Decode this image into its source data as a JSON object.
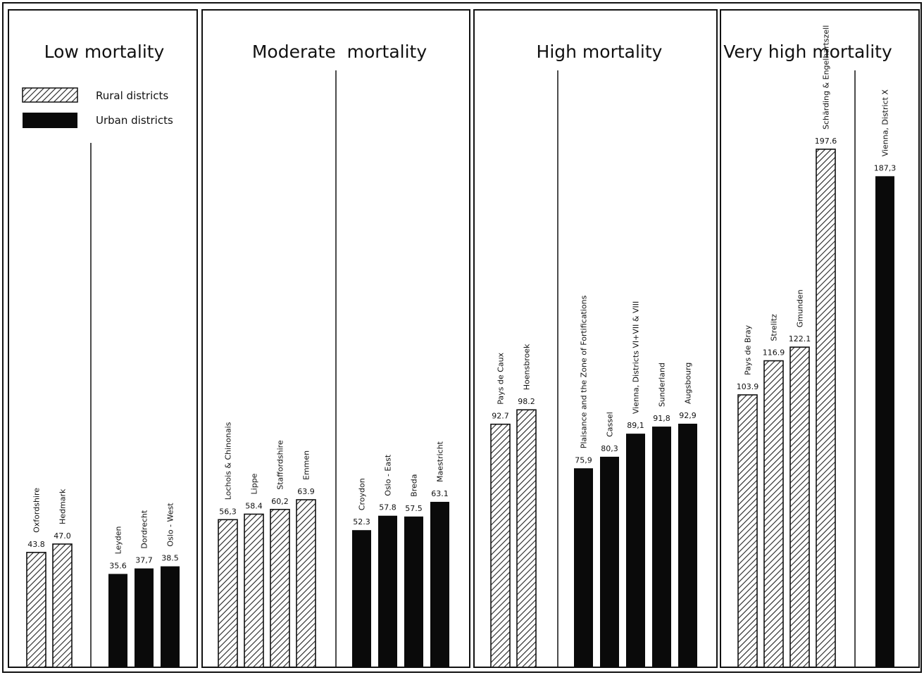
{
  "legend": {
    "rural": "Rural districts",
    "urban": "Urban districts"
  },
  "colors": {
    "urban": "#0a0a0a",
    "rural_hatch": "#222222",
    "background": "#ffffff"
  },
  "chart_data": [
    {
      "type": "bar",
      "title": "Low mortality",
      "ylim": [
        0,
        200
      ],
      "groups": [
        {
          "kind": "rural",
          "categories": [
            "Oxfordshire",
            "Hedmark"
          ],
          "values": [
            43.8,
            47.0
          ],
          "labels": [
            "43.8",
            "47.0"
          ]
        },
        {
          "kind": "urban",
          "categories": [
            "Leyden",
            "Dordrecht",
            "Oslo - West"
          ],
          "values": [
            35.6,
            37.7,
            38.5
          ],
          "labels": [
            "35.6",
            "37,7",
            "38.5"
          ]
        }
      ]
    },
    {
      "type": "bar",
      "title": "Moderate  mortality",
      "ylim": [
        0,
        200
      ],
      "groups": [
        {
          "kind": "rural",
          "categories": [
            "Lochois & Chinonais",
            "Lippe",
            "Staffordshire",
            "Emmen"
          ],
          "values": [
            56.3,
            58.4,
            60.2,
            63.9
          ],
          "labels": [
            "56,3",
            "58.4",
            "60,2",
            "63.9"
          ]
        },
        {
          "kind": "urban",
          "categories": [
            "Croydon",
            "Oslo - East",
            "Breda",
            "Maestricht"
          ],
          "values": [
            52.3,
            57.8,
            57.5,
            63.1
          ],
          "labels": [
            "52.3",
            "57.8",
            "57.5",
            "63.1"
          ]
        }
      ]
    },
    {
      "type": "bar",
      "title": "High mortality",
      "ylim": [
        0,
        200
      ],
      "groups": [
        {
          "kind": "rural",
          "categories": [
            "Pays de Caux",
            "Hoensbroek"
          ],
          "values": [
            92.7,
            98.2
          ],
          "labels": [
            "92.7",
            "98.2"
          ]
        },
        {
          "kind": "urban",
          "categories": [
            "Plaisance and the Zone of Fortifications",
            "Cassel",
            "Vienna, Districts VI+VII & VIII",
            "Sunderland",
            "Augsbourg"
          ],
          "values": [
            75.9,
            80.3,
            89.1,
            91.8,
            92.9
          ],
          "labels": [
            "75,9",
            "80,3",
            "89,1",
            "91,8",
            "92,9"
          ]
        }
      ]
    },
    {
      "type": "bar",
      "title": "Very high mortality",
      "ylim": [
        0,
        200
      ],
      "groups": [
        {
          "kind": "rural",
          "categories": [
            "Pays de Bray",
            "Strelitz",
            "Gmunden",
            "Schärding & Engelhartszell"
          ],
          "values": [
            103.9,
            116.9,
            122.1,
            197.6
          ],
          "labels": [
            "103.9",
            "116.9",
            "122.1",
            "197.6"
          ]
        },
        {
          "kind": "urban",
          "categories": [
            "Vienna, District X"
          ],
          "values": [
            187.3
          ],
          "labels": [
            "187,3"
          ]
        }
      ]
    }
  ]
}
